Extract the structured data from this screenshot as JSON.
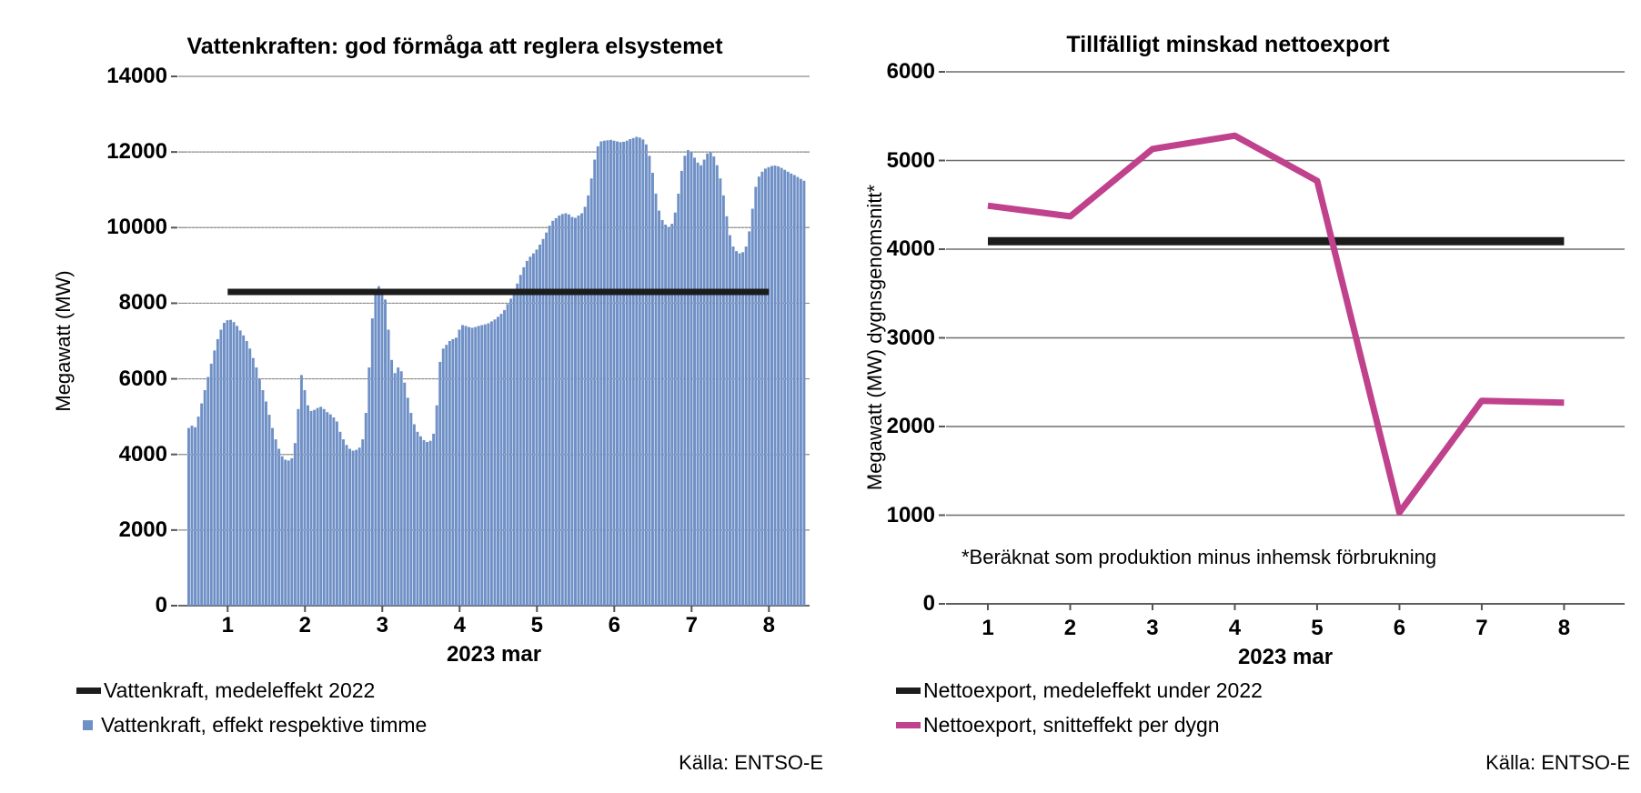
{
  "colors": {
    "bar_blue": "#6F90C6",
    "line_pink": "#C0418C",
    "reference_black": "#1C1C1C",
    "grid_gray_left": "#8A8A8A",
    "grid_gray_right": "#6E6E6E",
    "axis_dark": "#555555"
  },
  "chart_data": [
    {
      "type": "bar",
      "title": "Vattenkraften: god förmåga att reglera elsystemet",
      "ylabel": "Megawatt (MW)",
      "xlabel": "2023 mar",
      "source": "Källa: ENTSO-E",
      "ylim": [
        0,
        14000
      ],
      "y_ticks": [
        0,
        2000,
        4000,
        6000,
        8000,
        10000,
        12000,
        14000
      ],
      "x_ticks": [
        1,
        2,
        3,
        4,
        5,
        6,
        7,
        8
      ],
      "grid": true,
      "legend_position": "bottom-left",
      "bar_interval": "hour",
      "hours_before_first_tick": 12,
      "series_label": "Vattenkraft, effekt respektive timme",
      "reference_line": {
        "label": "Vattenkraft, medeleffekt 2022",
        "value": 8300,
        "x_span_days": [
          1,
          8
        ]
      },
      "values": [
        4700,
        4760,
        4720,
        5000,
        5350,
        5700,
        6050,
        6400,
        6750,
        7050,
        7300,
        7480,
        7550,
        7560,
        7500,
        7400,
        7280,
        7150,
        7000,
        6800,
        6550,
        6300,
        6000,
        5700,
        5400,
        5050,
        4700,
        4400,
        4150,
        3950,
        3860,
        3840,
        3900,
        4300,
        5200,
        6100,
        5700,
        5300,
        5150,
        5180,
        5230,
        5260,
        5200,
        5120,
        5060,
        4980,
        4870,
        4600,
        4400,
        4250,
        4150,
        4100,
        4120,
        4180,
        4400,
        5100,
        6300,
        7600,
        8300,
        8450,
        8300,
        8100,
        7300,
        6500,
        6150,
        6300,
        6200,
        5900,
        5500,
        5100,
        4800,
        4600,
        4480,
        4380,
        4330,
        4360,
        4550,
        5300,
        6450,
        6800,
        6900,
        7000,
        7050,
        7090,
        7300,
        7420,
        7400,
        7370,
        7350,
        7370,
        7400,
        7420,
        7440,
        7470,
        7520,
        7570,
        7640,
        7720,
        7820,
        7980,
        8120,
        8300,
        8520,
        8750,
        8950,
        9120,
        9230,
        9320,
        9420,
        9550,
        9700,
        9870,
        10050,
        10180,
        10250,
        10320,
        10360,
        10380,
        10350,
        10280,
        10260,
        10320,
        10380,
        10550,
        10850,
        11300,
        11800,
        12150,
        12280,
        12300,
        12310,
        12320,
        12300,
        12280,
        12260,
        12270,
        12300,
        12340,
        12370,
        12400,
        12380,
        12330,
        12200,
        11900,
        11450,
        10900,
        10450,
        10200,
        10080,
        10020,
        10100,
        10400,
        10900,
        11500,
        11900,
        12050,
        12000,
        11850,
        11720,
        11650,
        11800,
        11960,
        12000,
        11880,
        11650,
        11300,
        10850,
        10300,
        9800,
        9500,
        9380,
        9320,
        9350,
        9500,
        9900,
        10500,
        11080,
        11350,
        11480,
        11560,
        11600,
        11630,
        11640,
        11620,
        11580,
        11530,
        11480,
        11430,
        11390,
        11340,
        11290,
        11240
      ]
    },
    {
      "type": "line",
      "title": "Tillfälligt minskad nettoexport",
      "ylabel": "Megawatt (MW) dygnsgenomsnitt*",
      "xlabel": "2023 mar",
      "source": "Källa: ENTSO-E",
      "footnote": "*Beräknat som produktion minus inhemsk förbrukning",
      "ylim": [
        0,
        6000
      ],
      "y_ticks": [
        0,
        1000,
        2000,
        3000,
        4000,
        5000,
        6000
      ],
      "x_ticks": [
        1,
        2,
        3,
        4,
        5,
        6,
        7,
        8
      ],
      "grid": true,
      "legend_position": "bottom-left",
      "x": [
        1,
        2,
        3,
        4,
        5,
        6,
        7,
        8
      ],
      "series_label": "Nettoexport, snitteffekt per dygn",
      "reference_line": {
        "label": "Nettoexport, medeleffekt under 2022",
        "value": 4090,
        "x_span_days": [
          1,
          8
        ]
      },
      "values": [
        4490,
        4370,
        5130,
        5280,
        4770,
        1030,
        2290,
        2270
      ]
    }
  ]
}
